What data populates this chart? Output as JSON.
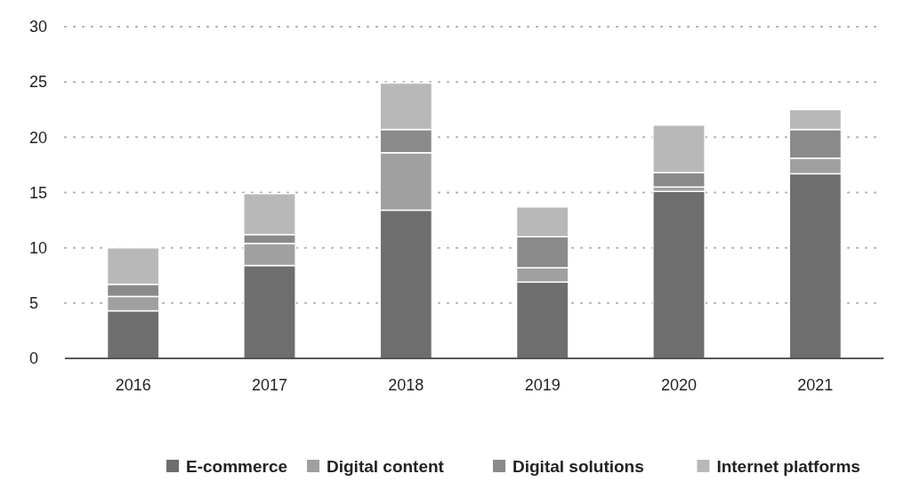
{
  "chart_data": {
    "type": "bar",
    "stacked": true,
    "categories": [
      "2016",
      "2017",
      "2018",
      "2019",
      "2020",
      "2021"
    ],
    "series": [
      {
        "name": "E-commerce",
        "color": "#6e6e6e",
        "values": [
          4.3,
          8.4,
          13.4,
          6.9,
          15.1,
          16.7
        ]
      },
      {
        "name": "Digital content",
        "color": "#a0a0a0",
        "values": [
          1.3,
          2.0,
          5.2,
          1.3,
          0.4,
          1.4
        ]
      },
      {
        "name": "Digital solutions",
        "color": "#8a8a8a",
        "values": [
          1.1,
          0.8,
          2.1,
          2.8,
          1.3,
          2.6
        ]
      },
      {
        "name": "Internet platforms",
        "color": "#b8b8b8",
        "values": [
          3.3,
          3.7,
          4.2,
          2.7,
          4.3,
          1.8
        ]
      }
    ],
    "ylim": [
      0,
      30
    ],
    "yticks": [
      0,
      5,
      10,
      15,
      20,
      25,
      30
    ],
    "grid": "y",
    "legend": "bottom"
  }
}
